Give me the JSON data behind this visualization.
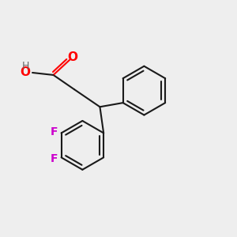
{
  "bg_color": "#eeeeee",
  "bond_color": "#1a1a1a",
  "bond_width": 1.5,
  "O_color": "#ff0000",
  "F_color": "#cc00cc",
  "H_color": "#666666",
  "figsize": [
    3.0,
    3.0
  ],
  "dpi": 100,
  "xlim": [
    0,
    10
  ],
  "ylim": [
    0,
    10
  ],
  "ph_r": 1.05,
  "df_r": 1.05
}
